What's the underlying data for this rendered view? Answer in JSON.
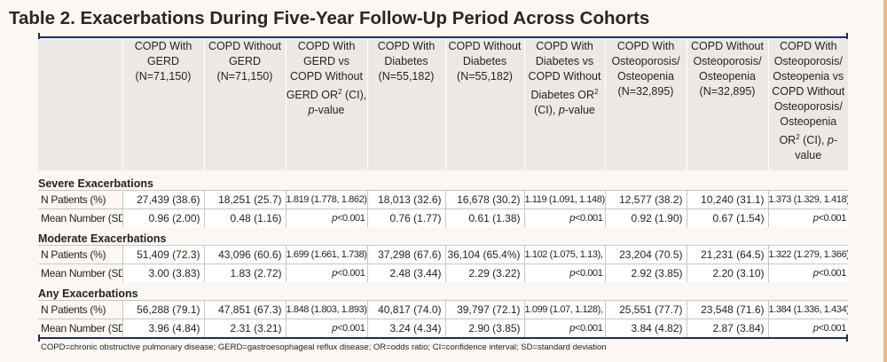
{
  "title": "Table 2. Exacerbations During Five-Year Follow-Up Period Across Cohorts",
  "columns": [
    {
      "pre": "COPD With GERD (N=71,150)"
    },
    {
      "pre": "COPD Without GERD (N=71,150)"
    },
    {
      "pre": "COPD With GERD vs COPD Without GERD OR",
      "sup": "2",
      "post": " (CI), ",
      "ital": "p",
      "post2": "-value"
    },
    {
      "pre": "COPD With Diabetes (N=55,182)"
    },
    {
      "pre": "COPD Without Diabetes (N=55,182)"
    },
    {
      "pre": "COPD With Diabetes vs COPD Without Diabetes OR",
      "sup": "2",
      "post": " (CI), ",
      "ital": "p",
      "post2": "-value"
    },
    {
      "pre": "COPD With Osteoporosis/ Osteopenia (N=32,895)"
    },
    {
      "pre": "COPD Without Osteoporosis/ Osteopenia (N=32,895)"
    },
    {
      "pre": "COPD With Osteoporosis/ Osteopenia vs COPD Without Osteoporosis/ Osteopenia OR",
      "sup": "2",
      "post": " (CI), ",
      "ital": "p",
      "post2": "-value"
    }
  ],
  "sections": [
    {
      "name": "Severe Exacerbations",
      "rows": [
        {
          "label": "N Patients (%)",
          "cells": [
            "27,439 (38.6)",
            "18,251 (25.7)",
            "1.819 (1.778, 1.862)",
            "18,013 (32.6)",
            "16,678 (30.2)",
            "1.119 (1.091, 1.148),",
            "12,577 (38.2)",
            "10,240 (31.1)",
            "1.373 (1.329, 1.418),"
          ]
        },
        {
          "label": "Mean Number (SD)",
          "cells": [
            "0.96 (2.00)",
            "0.48 (1.16)",
            "p<0.001",
            "0.76 (1.77)",
            "0.61 (1.38)",
            "p<0.001",
            "0.92 (1.90)",
            "0.67 (1.54)",
            "p<0.001"
          ]
        }
      ]
    },
    {
      "name": "Moderate Exacerbations",
      "rows": [
        {
          "label": "N Patients (%)",
          "cells": [
            "51,409 (72.3)",
            "43,096 (60.6)",
            "1.699 (1.661, 1.738)",
            "37,298 (67.6)",
            "36,104 (65.4%)",
            "1.102 (1.075, 1.13),",
            "23,204 (70.5)",
            "21,231 (64.5)",
            "1.322 (1.279, 1.366),"
          ]
        },
        {
          "label": "Mean Number (SD)",
          "cells": [
            "3.00 (3.83)",
            "1.83 (2.72)",
            "p<0.001",
            "2.48 (3.44)",
            "2.29 (3.22)",
            "p<0.001",
            "2.92 (3.85)",
            "2.20 (3.10)",
            "p<0.001"
          ]
        }
      ]
    },
    {
      "name": "Any Exacerbations",
      "rows": [
        {
          "label": "N Patients (%)",
          "cells": [
            "56,288 (79.1)",
            "47,851 (67.3)",
            "1.848 (1.803, 1.893)",
            "40,817 (74.0)",
            "39,797 (72.1)",
            "1.099 (1.07, 1.128),",
            "25,551 (77.7)",
            "23,548 (71.6)",
            "1.384 (1.336, 1.434),"
          ]
        },
        {
          "label": "Mean Number (SD)",
          "cells": [
            "3.96 (4.84)",
            "2.31 (3.21)",
            "p<0.001",
            "3.24 (4.34)",
            "2.90 (3.85)",
            "p<0.001",
            "3.84 (4.82)",
            "2.87 (3.84)",
            "p<0.001"
          ]
        }
      ]
    }
  ],
  "footnote": "COPD=chronic obstructive pulmonary disease; GERD=gastroesophageal reflux disease; OR=odds ratio; CI=confidence interval; SD=standard deviation"
}
